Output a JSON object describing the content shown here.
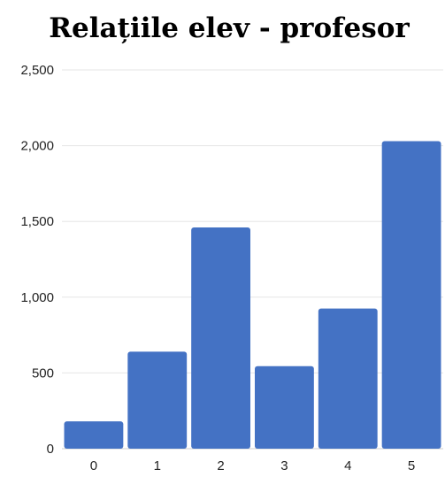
{
  "chart_data": {
    "type": "bar",
    "title": "Relațiile elev - profesor",
    "xlabel": "",
    "ylabel": "",
    "categories": [
      "0",
      "1",
      "2",
      "3",
      "4",
      "5"
    ],
    "values": [
      180,
      640,
      1460,
      545,
      925,
      2030
    ],
    "ylim": [
      0,
      2500
    ],
    "yticks": [
      0,
      500,
      1000,
      1500,
      2000,
      2500
    ],
    "ytick_labels": [
      "0",
      "500",
      "1,000",
      "1,500",
      "2,000",
      "2,500"
    ],
    "bar_color": "#4472C4",
    "grid": true,
    "legend": false
  }
}
